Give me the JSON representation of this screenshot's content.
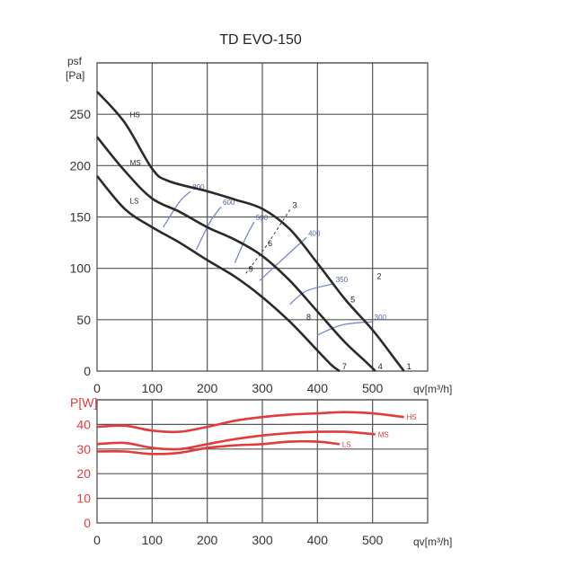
{
  "chart_data": [
    {
      "type": "line",
      "title": "TD EVO-150",
      "ylabel": "psf",
      "ylabel_unit": "[Pa]",
      "xlabel": "qv[m³/h]",
      "xlim": [
        0,
        600
      ],
      "ylim": [
        0,
        275
      ],
      "xticks": [
        0,
        100,
        200,
        300,
        400,
        500
      ],
      "yticks": [
        0,
        50,
        100,
        150,
        200,
        250
      ],
      "grid": true,
      "series": [
        {
          "name": "HS",
          "x": [
            0,
            50,
            100,
            130,
            200,
            250,
            300,
            350,
            400,
            450,
            500,
            540,
            557
          ],
          "y": [
            272,
            242,
            197,
            185,
            175,
            167,
            158,
            138,
            105,
            70,
            40,
            12,
            0
          ]
        },
        {
          "name": "MS",
          "x": [
            0,
            50,
            100,
            150,
            200,
            250,
            300,
            350,
            400,
            450,
            490,
            505
          ],
          "y": [
            228,
            195,
            168,
            155,
            140,
            128,
            112,
            88,
            58,
            28,
            8,
            0
          ]
        },
        {
          "name": "LS",
          "x": [
            0,
            50,
            100,
            150,
            200,
            250,
            300,
            350,
            400,
            425,
            440
          ],
          "y": [
            190,
            158,
            140,
            125,
            108,
            92,
            72,
            48,
            20,
            6,
            0
          ]
        }
      ],
      "rpm_curves": [
        {
          "label": "800",
          "x": [
            120,
            150,
            170
          ],
          "y": [
            140,
            165,
            175
          ]
        },
        {
          "label": "600",
          "x": [
            180,
            205,
            225
          ],
          "y": [
            118,
            145,
            160
          ]
        },
        {
          "label": "500",
          "x": [
            250,
            270,
            285
          ],
          "y": [
            105,
            130,
            145
          ]
        },
        {
          "label": "400",
          "x": [
            295,
            335,
            380
          ],
          "y": [
            88,
            108,
            130
          ]
        },
        {
          "label": "350",
          "x": [
            350,
            380,
            430
          ],
          "y": [
            65,
            78,
            85
          ]
        },
        {
          "label": "300",
          "x": [
            400,
            445,
            500
          ],
          "y": [
            35,
            45,
            48
          ]
        }
      ],
      "points": [
        {
          "label": "1",
          "x": 557,
          "y": 0
        },
        {
          "label": "2",
          "x": 503,
          "y": 88
        },
        {
          "label": "3",
          "x": 350,
          "y": 157
        },
        {
          "label": "4",
          "x": 505,
          "y": 0
        },
        {
          "label": "5",
          "x": 455,
          "y": 65
        },
        {
          "label": "6",
          "x": 305,
          "y": 120
        },
        {
          "label": "7",
          "x": 440,
          "y": 0
        },
        {
          "label": "8",
          "x": 375,
          "y": 48
        },
        {
          "label": "9",
          "x": 270,
          "y": 95
        }
      ]
    },
    {
      "type": "line",
      "ylabel": "P[W]",
      "xlabel": "qv[m³/h]",
      "xlim": [
        0,
        600
      ],
      "ylim": [
        0,
        50
      ],
      "xticks": [
        0,
        100,
        200,
        300,
        400,
        500
      ],
      "yticks": [
        0,
        10,
        20,
        30,
        40
      ],
      "grid": true,
      "series": [
        {
          "name": "HS",
          "x": [
            0,
            50,
            100,
            150,
            200,
            250,
            300,
            350,
            400,
            450,
            500,
            557
          ],
          "y": [
            39,
            39.5,
            37.5,
            37,
            39,
            41.5,
            43,
            44,
            44.5,
            45,
            44.5,
            43
          ]
        },
        {
          "name": "MS",
          "x": [
            0,
            50,
            100,
            150,
            200,
            250,
            300,
            350,
            400,
            450,
            505
          ],
          "y": [
            32,
            32.5,
            30.5,
            30,
            32,
            34,
            35.5,
            36.5,
            37,
            37,
            36
          ]
        },
        {
          "name": "LS",
          "x": [
            0,
            50,
            100,
            150,
            200,
            250,
            300,
            350,
            400,
            440
          ],
          "y": [
            29,
            29,
            28,
            28.5,
            30.5,
            31.5,
            32,
            33,
            33,
            32
          ]
        }
      ]
    }
  ],
  "colors": {
    "grid": "#555555",
    "curve": "#2a2a2a",
    "rpm": "#7788cc",
    "power": "#e23b3b"
  }
}
